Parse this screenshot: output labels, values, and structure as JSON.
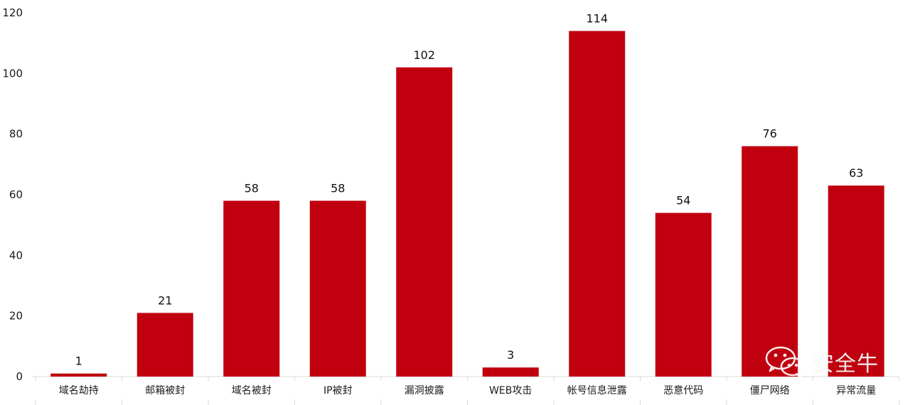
{
  "chart_data": {
    "type": "bar",
    "categories": [
      "域名劫持",
      "邮箱被封",
      "域名被封",
      "IP被封",
      "漏洞披露",
      "WEB攻击",
      "帐号信息泄露",
      "恶意代码",
      "僵尸网络",
      "异常流量"
    ],
    "values": [
      1,
      21,
      58,
      58,
      102,
      3,
      114,
      54,
      76,
      63
    ],
    "yticks": [
      0,
      20,
      40,
      60,
      80,
      100,
      120
    ],
    "ylim": [
      0,
      120
    ],
    "grid": false,
    "value_labels_shown": true
  },
  "watermark": {
    "text": "安全牛",
    "icon": "wechat-icon"
  },
  "colors": {
    "bar": "#c0000f",
    "axis": "#d9d9d9",
    "text": "#1a1a1a"
  }
}
